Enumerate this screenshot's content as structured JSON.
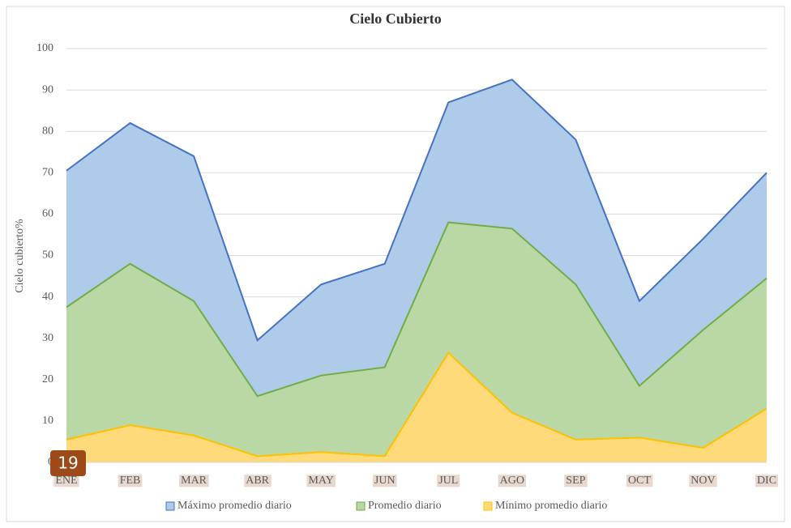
{
  "chart_data": {
    "type": "area",
    "title": "Cielo Cubierto",
    "y_label": "Cielo cubierto%",
    "annotation": "19",
    "categories": [
      "ENE",
      "FEB",
      "MAR",
      "ABR",
      "MAY",
      "JUN",
      "JUL",
      "AGO",
      "SEP",
      "OCT",
      "NOV",
      "DIC"
    ],
    "series": [
      {
        "name": "Máximo promedio diario",
        "color": "#4472c4",
        "fill": "#afcbea",
        "values": [
          70.5,
          82,
          74,
          29.5,
          43,
          48,
          87,
          92.5,
          78,
          39,
          54,
          70
        ]
      },
      {
        "name": "Promedio diario",
        "color": "#70ad47",
        "fill": "#b9d8a5",
        "values": [
          37.5,
          48,
          39,
          16,
          21,
          23,
          58,
          56.5,
          43,
          18.5,
          32,
          44.5
        ]
      },
      {
        "name": "Mínimo promedio diario",
        "color": "#ffc000",
        "fill": "#ffda7a",
        "values": [
          5.5,
          9,
          6.5,
          1.5,
          2.5,
          1.5,
          26.5,
          12,
          5.5,
          6,
          3.5,
          13
        ]
      }
    ],
    "ylim": [
      0,
      100
    ],
    "yticks": [
      0,
      10,
      20,
      30,
      40,
      50,
      60,
      70,
      80,
      90,
      100
    ],
    "grid": true,
    "legend": "bottom"
  }
}
